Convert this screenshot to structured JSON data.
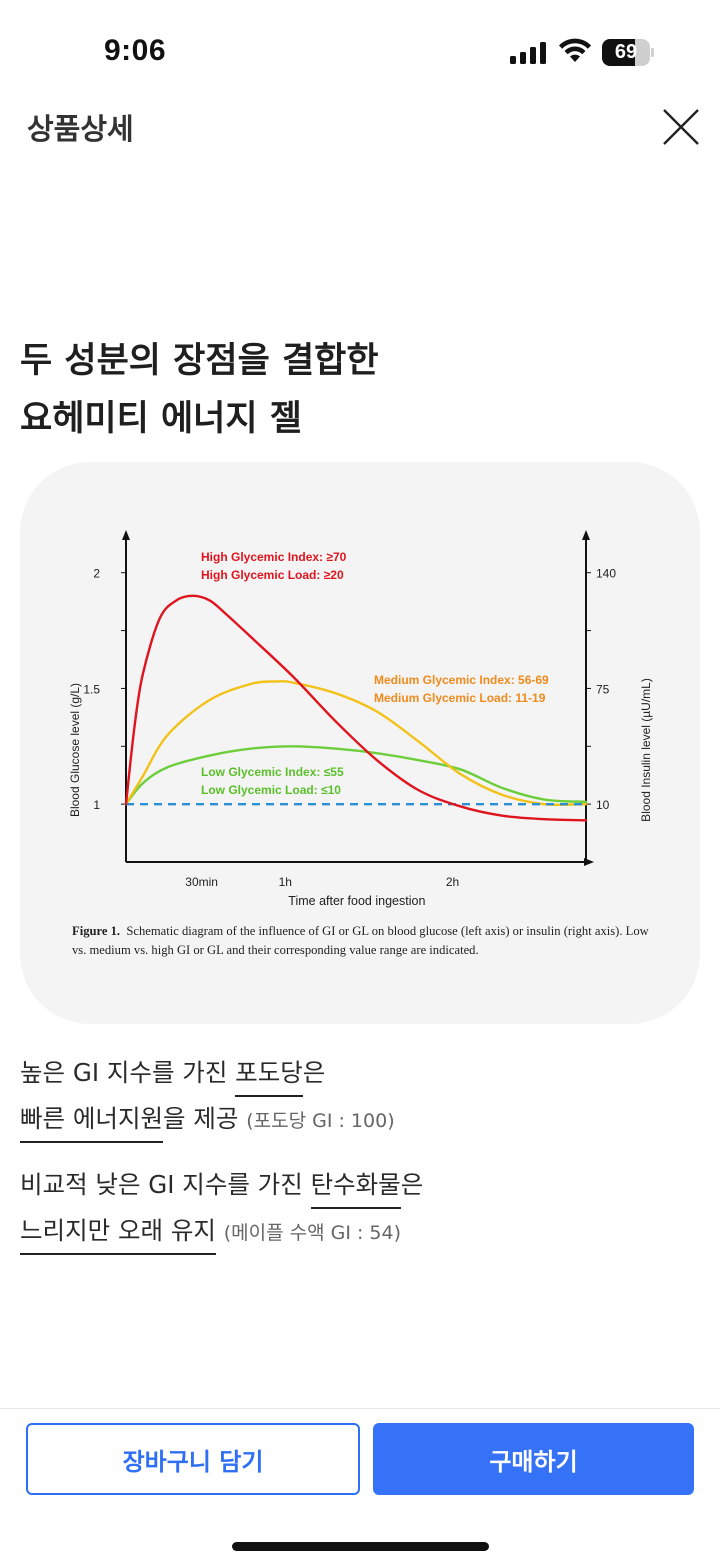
{
  "status_bar": {
    "time": "9:06",
    "battery": 69,
    "icons": [
      "signal-icon",
      "wifi-icon",
      "battery-icon"
    ]
  },
  "header": {
    "title": "상품상세",
    "close_icon": "close-icon"
  },
  "headline": {
    "line1": "두 성분의 장점을 결합한",
    "line2": "요헤미티 에너지 젤"
  },
  "colors": {
    "high": "#e0141e",
    "medium": "#f2c21a",
    "low": "#6cce3a",
    "baseline": "#2a8fd6",
    "medium_label": "#f08a1c",
    "primary": "#3572f8"
  },
  "chart_data": {
    "type": "line",
    "xlabel": "Time after food ingestion",
    "ylabel": "Blood Glucose level (g/L)",
    "y2label": "Blood Insulin level (µU/mL)",
    "x_ticks": [
      {
        "value": 0.5,
        "label": "30min"
      },
      {
        "value": 1.0,
        "label": "1h"
      },
      {
        "value": 2.0,
        "label": "2h"
      }
    ],
    "y_ticks": [
      {
        "value": 1,
        "label": "1"
      },
      {
        "value": 1.5,
        "label": "1.5"
      },
      {
        "value": 2,
        "label": "2"
      }
    ],
    "y2_ticks": [
      {
        "value": 1,
        "label": "10"
      },
      {
        "value": 1.5,
        "label": "75"
      },
      {
        "value": 2,
        "label": "140"
      }
    ],
    "ylim": [
      0.75,
      2.15
    ],
    "xlim": [
      0,
      2.75
    ],
    "series": [
      {
        "key": "high",
        "labels": [
          "High Glycemic Index: ≥70",
          "High Glycemic Load: ≥20"
        ],
        "x": [
          0,
          0.05,
          0.1,
          0.2,
          0.3,
          0.4,
          0.5,
          0.6,
          0.75,
          1.0,
          1.25,
          1.5,
          1.75,
          2.0,
          2.25,
          2.5,
          2.75
        ],
        "y": [
          1.0,
          1.33,
          1.56,
          1.8,
          1.88,
          1.9,
          1.88,
          1.82,
          1.72,
          1.55,
          1.36,
          1.19,
          1.06,
          0.99,
          0.95,
          0.935,
          0.93
        ]
      },
      {
        "key": "medium",
        "labels": [
          "Medium Glycemic Index: 56-69",
          "Medium Glycemic Load: 11-19"
        ],
        "x": [
          0,
          0.1,
          0.25,
          0.5,
          0.75,
          0.9,
          1.0,
          1.25,
          1.5,
          1.75,
          2.0,
          2.25,
          2.5,
          2.75
        ],
        "y": [
          1.0,
          1.12,
          1.3,
          1.45,
          1.52,
          1.53,
          1.525,
          1.48,
          1.4,
          1.27,
          1.13,
          1.04,
          1.0,
          1.0
        ]
      },
      {
        "key": "low",
        "labels": [
          "Low Glycemic Index: ≤55",
          "Low Glycemic Load: ≤10"
        ],
        "x": [
          0,
          0.1,
          0.25,
          0.5,
          0.75,
          1.0,
          1.25,
          1.5,
          1.75,
          2.0,
          2.25,
          2.5,
          2.75
        ],
        "y": [
          1.0,
          1.09,
          1.16,
          1.21,
          1.24,
          1.25,
          1.24,
          1.22,
          1.19,
          1.15,
          1.07,
          1.02,
          1.01
        ]
      },
      {
        "key": "baseline",
        "labels": [],
        "x": [
          0,
          2.75
        ],
        "y": [
          1.0,
          1.0
        ],
        "dashed": true
      }
    ],
    "caption_bold": "Figure 1.",
    "caption": "Schematic diagram of the influence of GI or GL on blood glucose (left axis) or insulin (right axis). Low vs. medium vs. high GI or GL and their corresponding value range are indicated."
  },
  "description": {
    "p1_l1_a": "높은 GI 지수를 가진 ",
    "p1_l1_u": "포도당",
    "p1_l1_b": "은",
    "p1_l2_u": "빠른 에너지원",
    "p1_l2_b": "을 제공 ",
    "p1_note": "(포도당 GI : 100)",
    "p2_l1_a": "비교적 낮은 GI 지수를 가진 ",
    "p2_l1_u": "탄수화물",
    "p2_l1_b": "은",
    "p2_l2_u": "느리지만 오래 유지",
    "p2_l2_b": " ",
    "p2_note": "(메이플 수액 GI : 54)"
  },
  "actions": {
    "cart_label": "장바구니 담기",
    "buy_label": "구매하기"
  }
}
